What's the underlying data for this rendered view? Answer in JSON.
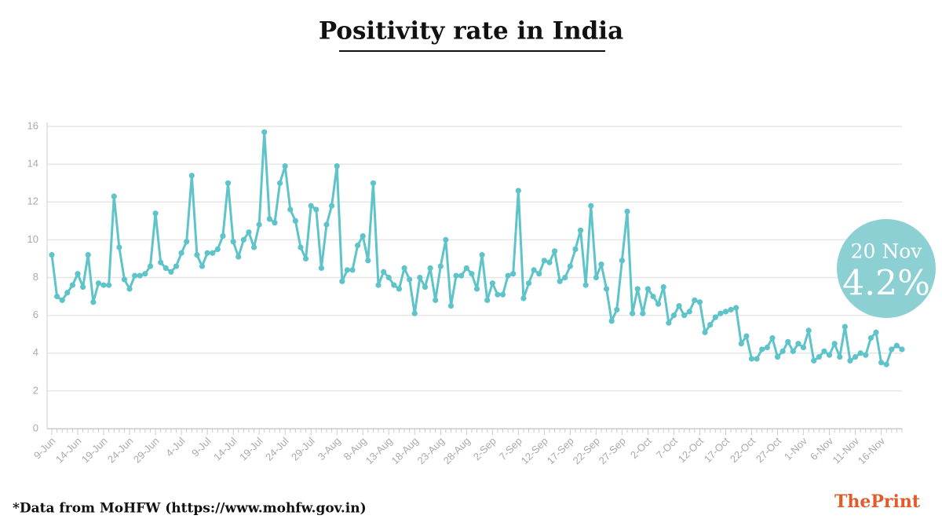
{
  "chart_data": {
    "type": "line",
    "title": "Positivity rate in India",
    "categories": [
      "9-Jun",
      null,
      null,
      null,
      null,
      "14-Jun",
      null,
      null,
      null,
      null,
      "19-Jun",
      null,
      null,
      null,
      null,
      "24-Jun",
      null,
      null,
      null,
      null,
      "29-Jun",
      null,
      null,
      null,
      null,
      "4-Jul",
      null,
      null,
      null,
      null,
      "9-Jul",
      null,
      null,
      null,
      null,
      "14-Jul",
      null,
      null,
      null,
      null,
      "19-Jul",
      null,
      null,
      null,
      null,
      "24-Jul",
      null,
      null,
      null,
      null,
      "29-Jul",
      null,
      null,
      null,
      null,
      "3-Aug",
      null,
      null,
      null,
      null,
      "8-Aug",
      null,
      null,
      null,
      null,
      "13-Aug",
      null,
      null,
      null,
      null,
      "18-Aug",
      null,
      null,
      null,
      null,
      "23-Aug",
      null,
      null,
      null,
      null,
      "28-Aug",
      null,
      null,
      null,
      null,
      "2-Sep",
      null,
      null,
      null,
      null,
      "7-Sep",
      null,
      null,
      null,
      null,
      "12-Sep",
      null,
      null,
      null,
      null,
      "17-Sep",
      null,
      null,
      null,
      null,
      "22-Sep",
      null,
      null,
      null,
      null,
      "27-Sep",
      null,
      null,
      null,
      null,
      "2-Oct",
      null,
      null,
      null,
      null,
      "7-Oct",
      null,
      null,
      null,
      null,
      "12-Oct",
      null,
      null,
      null,
      null,
      "17-Oct",
      null,
      null,
      null,
      null,
      "22-Oct",
      null,
      null,
      null,
      null,
      "27-Oct",
      null,
      null,
      null,
      null,
      "1-Nov",
      null,
      null,
      null,
      null,
      "6-Nov",
      null,
      null,
      null,
      null,
      "11-Nov",
      null,
      null,
      null,
      null,
      "16-Nov",
      null,
      null,
      null,
      null
    ],
    "values": [
      9.2,
      7.0,
      6.8,
      7.2,
      7.6,
      8.2,
      7.5,
      9.2,
      6.7,
      7.7,
      7.6,
      7.6,
      12.3,
      9.6,
      7.9,
      7.4,
      8.1,
      8.1,
      8.2,
      8.6,
      11.4,
      8.8,
      8.5,
      8.3,
      8.6,
      9.3,
      9.9,
      13.4,
      9.2,
      8.6,
      9.3,
      9.3,
      9.5,
      10.2,
      13.0,
      9.9,
      9.1,
      10.0,
      10.4,
      9.6,
      10.8,
      15.7,
      11.1,
      10.9,
      13.0,
      13.9,
      11.6,
      11.0,
      9.6,
      9.0,
      11.8,
      11.6,
      8.5,
      10.8,
      11.8,
      13.9,
      7.8,
      8.4,
      8.4,
      9.7,
      10.2,
      8.9,
      13.0,
      7.6,
      8.3,
      8.0,
      7.6,
      7.4,
      8.5,
      7.9,
      6.1,
      8.0,
      7.5,
      8.5,
      6.8,
      8.6,
      10.0,
      6.5,
      8.1,
      8.1,
      8.5,
      8.2,
      7.4,
      9.2,
      6.8,
      7.7,
      7.1,
      7.1,
      8.1,
      8.2,
      12.6,
      6.9,
      7.7,
      8.4,
      8.2,
      8.9,
      8.8,
      9.4,
      7.8,
      8.0,
      8.6,
      9.5,
      10.5,
      7.6,
      11.8,
      8.0,
      8.7,
      7.4,
      5.7,
      6.3,
      8.9,
      11.5,
      6.1,
      7.4,
      6.1,
      7.4,
      7.0,
      6.6,
      7.5,
      5.6,
      6.0,
      6.5,
      6.0,
      6.2,
      6.8,
      6.7,
      5.1,
      5.5,
      5.9,
      6.1,
      6.2,
      6.3,
      6.4,
      4.5,
      4.9,
      3.7,
      3.7,
      4.2,
      4.3,
      4.8,
      3.8,
      4.1,
      4.6,
      4.1,
      4.5,
      4.3,
      5.2,
      3.6,
      3.8,
      4.1,
      3.9,
      4.5,
      3.8,
      5.4,
      3.6,
      3.8,
      4.0,
      3.9,
      4.8,
      5.1,
      3.5,
      3.4,
      4.2,
      4.4,
      4.2
    ],
    "color": "#5ec4c9",
    "ylim": [
      0,
      16
    ],
    "yticks": [
      0,
      2,
      4,
      6,
      8,
      10,
      12,
      14,
      16
    ],
    "grid": true,
    "annotation": {
      "date": "20 Nov",
      "text": "4.2%",
      "color": "#8dd0d4"
    },
    "footnote": "*Data from MoHFW (https://www.mohfw.gov.in)",
    "brand": {
      "first": "The",
      "second": "Print"
    }
  }
}
